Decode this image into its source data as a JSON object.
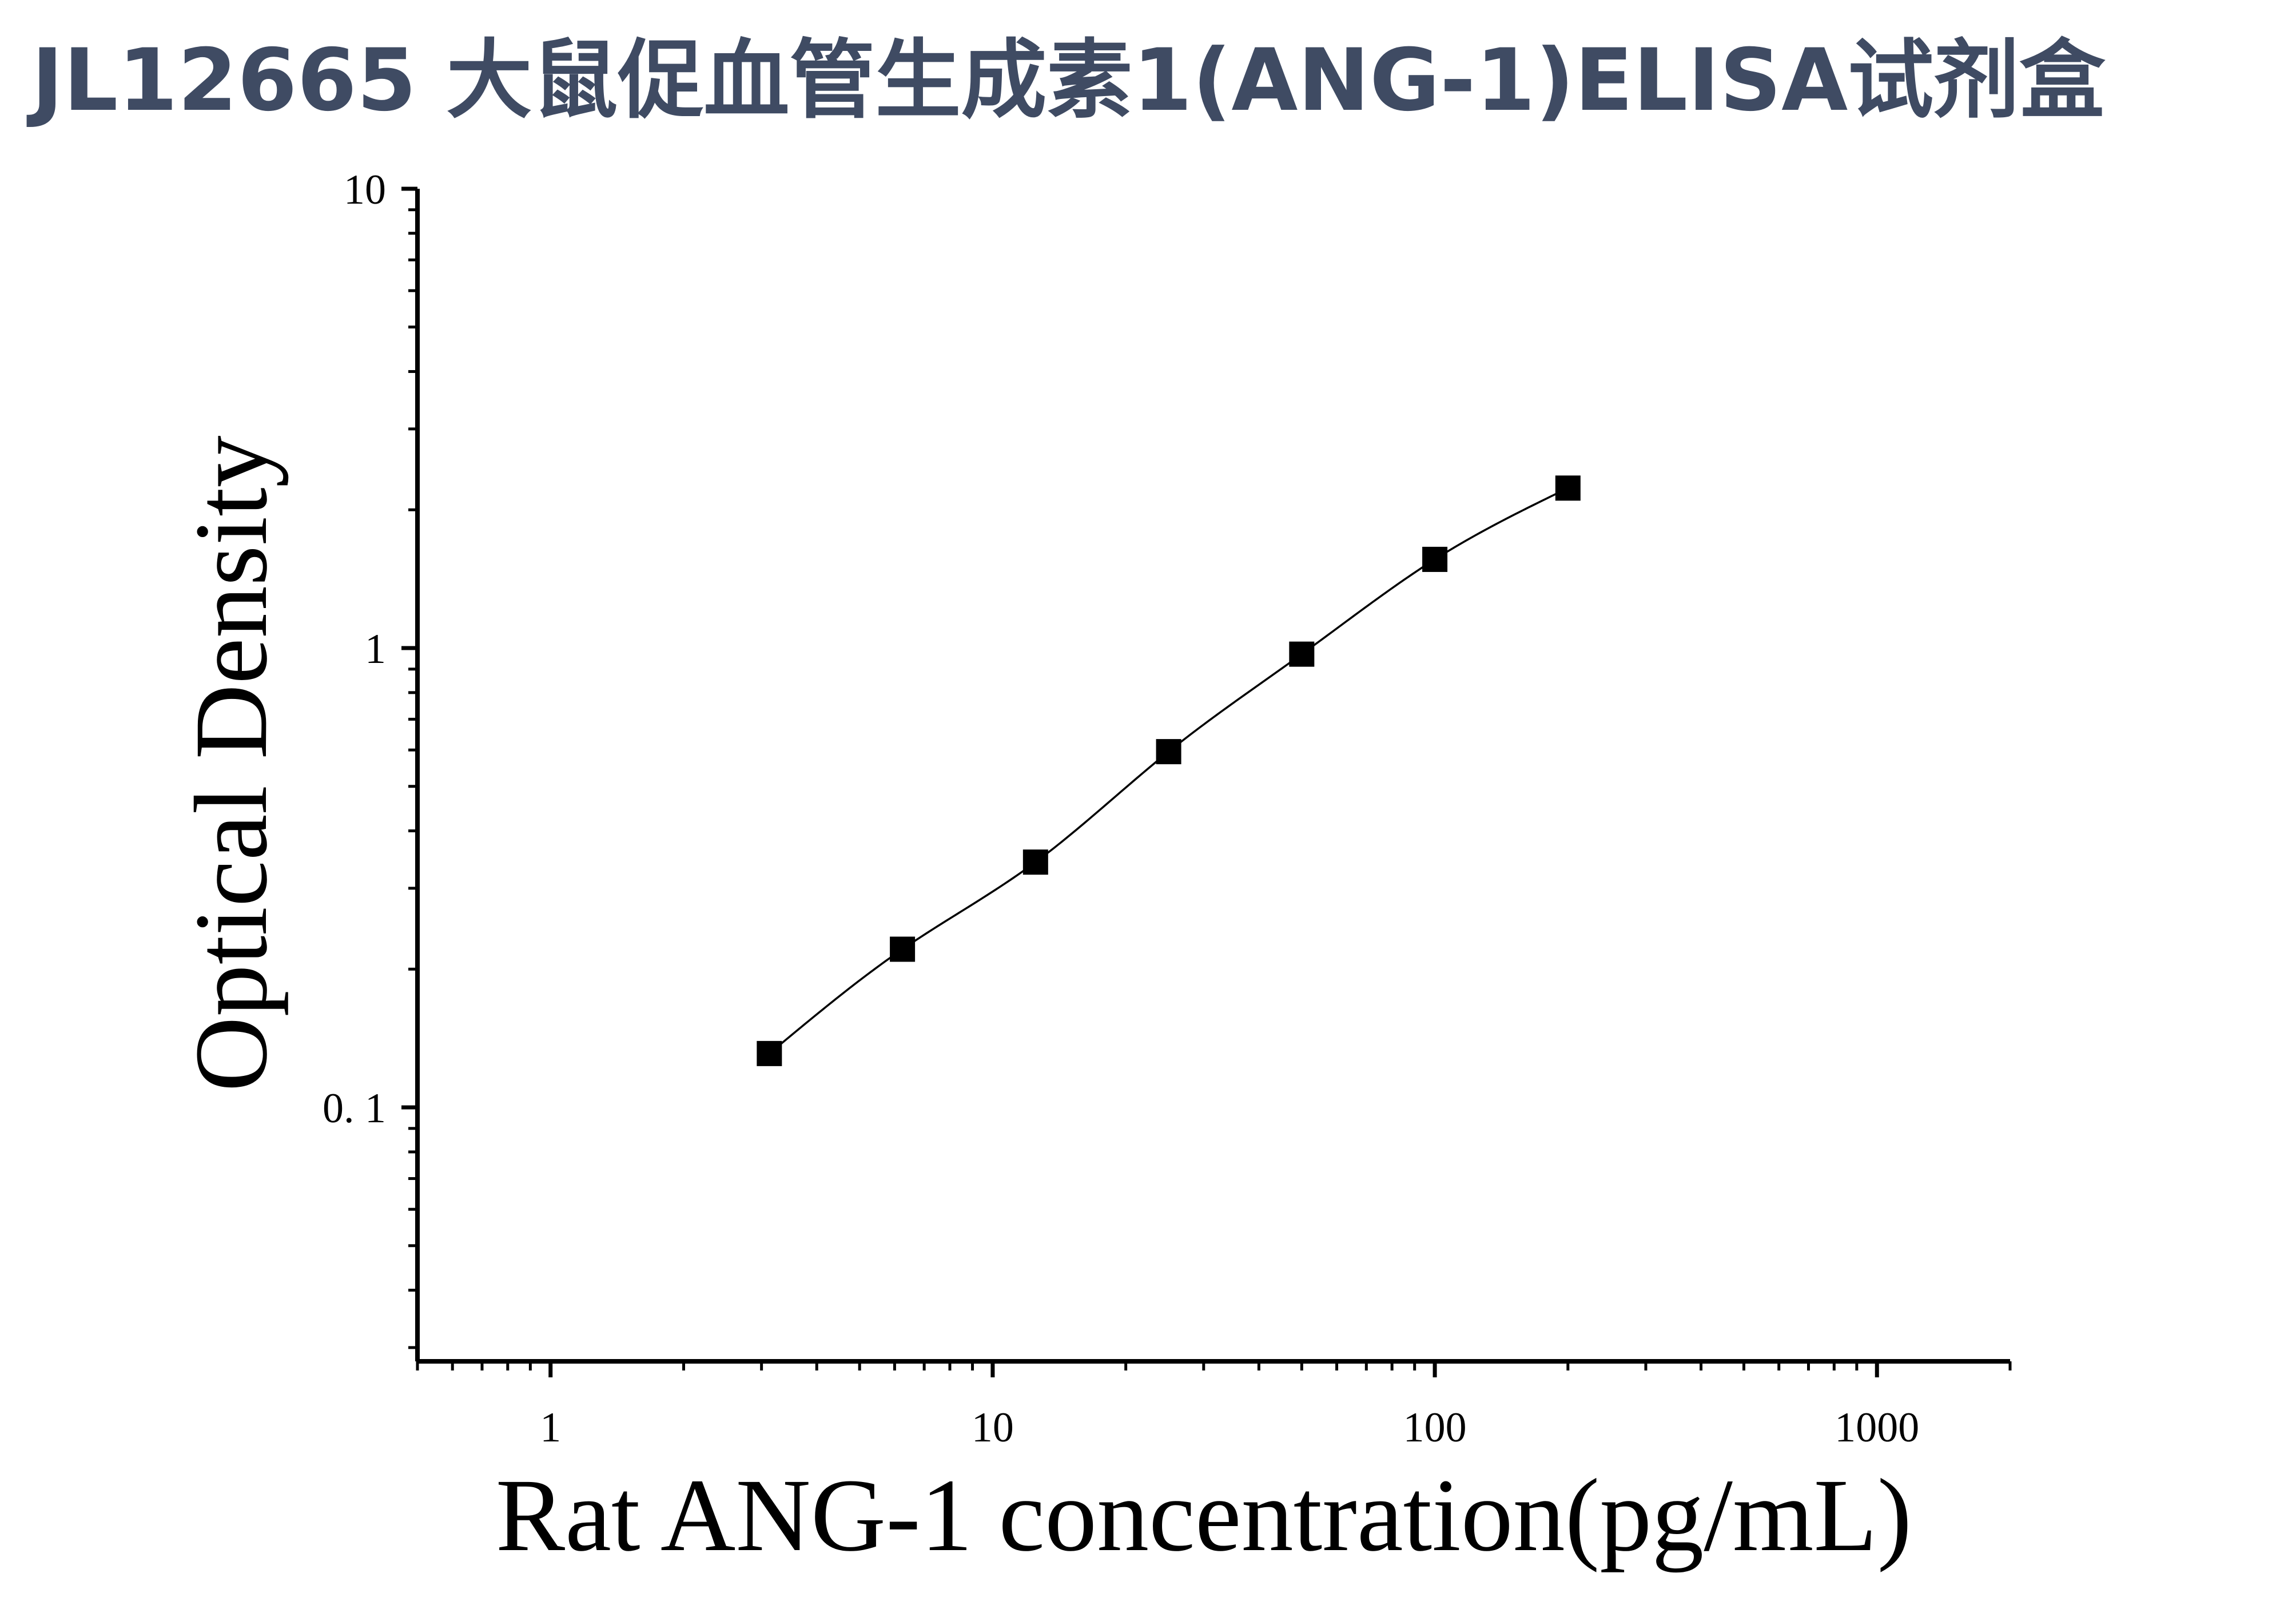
{
  "title": "JL12665 大鼠促血管生成素1(ANG-1)ELISA试剂盒",
  "chart_data": {
    "type": "scatter",
    "xlabel": "Rat ANG-1 concentration(pg/mL)",
    "ylabel": "Optical Density",
    "xscale": "log",
    "yscale": "log",
    "xlim": [
      0.5,
      2000
    ],
    "ylim": [
      0.028,
      10
    ],
    "x_ticks": [
      1,
      10,
      100,
      1000
    ],
    "x_tick_labels": [
      "1",
      "10",
      "100",
      "1000"
    ],
    "y_ticks": [
      0.1,
      1,
      10
    ],
    "y_tick_labels": [
      "0. 1",
      "1",
      "10"
    ],
    "grid": false,
    "legend": "none",
    "marker": "square",
    "fit_curve": true,
    "series": [
      {
        "x": [
          3.125,
          6.25,
          12.5,
          25,
          50,
          100,
          200
        ],
        "y": [
          0.131,
          0.221,
          0.342,
          0.595,
          0.97,
          1.56,
          2.23
        ]
      }
    ],
    "colors": {
      "title": "#3f4b63",
      "marks": "#000000"
    }
  }
}
